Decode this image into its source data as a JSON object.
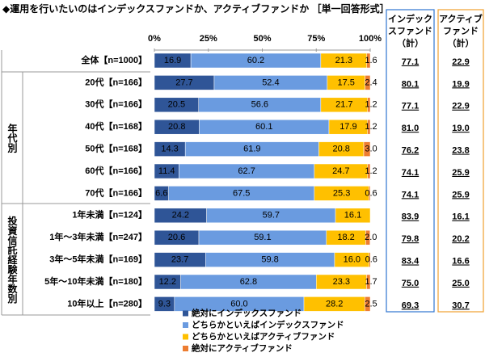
{
  "chart_data": {
    "type": "stacked_bar_horizontal",
    "title": "◆運用を行いたいのはインデックスファンドか、アクティブファンドか ［単一回答形式］",
    "categories": [
      "全体【n=1000】",
      "20代【n=166】",
      "30代【n=166】",
      "40代【n=168】",
      "50代【n=168】",
      "60代【n=166】",
      "70代【n=166】",
      "1年未満【n=124】",
      "1年～3年未満【n=247】",
      "3年～5年未満【n=169】",
      "5年～10年未満【n=180】",
      "10年以上【n=280】"
    ],
    "groups": [
      "年代別",
      "投資信託経験年数別"
    ],
    "xlim": [
      0,
      100
    ],
    "xticks": [
      {
        "value": 0,
        "label": "0%"
      },
      {
        "value": 25,
        "label": "25%"
      },
      {
        "value": 50,
        "label": "50%"
      },
      {
        "value": 75,
        "label": "75%"
      },
      {
        "value": 100,
        "label": "100%"
      }
    ],
    "series": [
      {
        "name": "絶対にインデックスファンド",
        "color": "#2f5597",
        "values": [
          16.9,
          27.7,
          20.5,
          20.8,
          14.3,
          11.4,
          6.6,
          24.2,
          20.6,
          23.7,
          12.2,
          9.3
        ],
        "value_labels": [
          "16.9",
          "27.7",
          "20.5",
          "20.8",
          "14.3",
          "11.4",
          "6.6",
          "24.2",
          "20.6",
          "23.7",
          "12.2",
          "9.3"
        ]
      },
      {
        "name": "どちらかといえばインデックスファンド",
        "color": "#6a9be0",
        "values": [
          60.2,
          52.4,
          56.6,
          60.1,
          61.9,
          62.7,
          67.5,
          59.7,
          59.1,
          59.8,
          62.8,
          60.0
        ],
        "value_labels": [
          "60.2",
          "52.4",
          "56.6",
          "60.1",
          "61.9",
          "62.7",
          "67.5",
          "59.7",
          "59.1",
          "59.8",
          "62.8",
          "60.0"
        ]
      },
      {
        "name": "どちらかといえばアクティブファンド",
        "color": "#ffc000",
        "values": [
          21.3,
          17.5,
          21.7,
          17.9,
          20.8,
          24.7,
          25.3,
          16.1,
          18.2,
          16.0,
          23.3,
          28.2
        ],
        "value_labels": [
          "21.3",
          "17.5",
          "21.7",
          "17.9",
          "20.8",
          "24.7",
          "25.3",
          "16.1",
          "18.2",
          "16.0",
          "23.3",
          "28.2"
        ]
      },
      {
        "name": "絶対にアクティブファンド",
        "color": "#ed7d31",
        "values": [
          1.6,
          2.4,
          1.2,
          1.2,
          3.0,
          1.2,
          0.6,
          0,
          2.0,
          0.6,
          1.7,
          2.5
        ],
        "value_labels": [
          "1.6",
          "2.4",
          "1.2",
          "1.2",
          "3.0",
          "1.2",
          "0.6",
          null,
          "2.0",
          "0.6",
          "1.7",
          "2.5"
        ]
      }
    ],
    "side_columns": [
      {
        "header": [
          "インデック",
          "スファンド",
          "（計）"
        ],
        "color": "#2f75d0",
        "values": [
          "77.1",
          "80.1",
          "77.1",
          "81.0",
          "76.2",
          "74.1",
          "74.1",
          "83.9",
          "79.8",
          "83.4",
          "75.0",
          "69.3"
        ]
      },
      {
        "header": [
          "アクティブ",
          "ファンド",
          "（計）"
        ],
        "color": "#f0a030",
        "values": [
          "22.9",
          "19.9",
          "22.9",
          "19.0",
          "23.8",
          "25.9",
          "25.9",
          "16.1",
          "20.2",
          "16.6",
          "25.0",
          "30.7"
        ]
      }
    ]
  }
}
